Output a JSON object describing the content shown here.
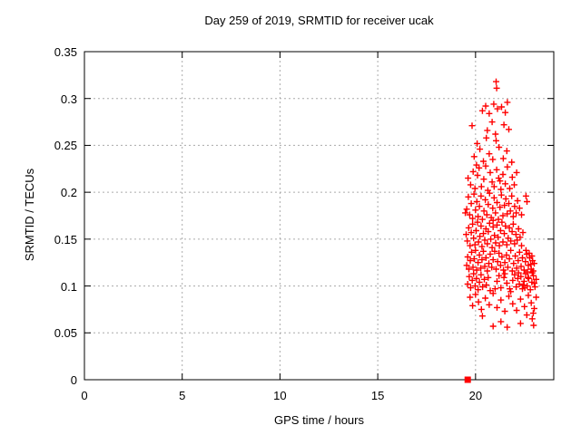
{
  "title": "Day 259 of 2019, SRMTID for receiver ucak",
  "colors": {
    "marker": "#ff0000",
    "axis": "#000000",
    "grid": "#aaaaaa",
    "background": "#ffffff"
  },
  "chart_data": {
    "type": "scatter",
    "title": "Day 259 of 2019, SRMTID for receiver ucak",
    "xlabel": "GPS time / hours",
    "ylabel": "SRMTID / TECUs",
    "xlim": [
      0,
      24
    ],
    "ylim": [
      0,
      0.35
    ],
    "xticks": {
      "values": [
        0,
        5,
        10,
        15,
        20
      ],
      "labels": [
        "0",
        "5",
        "10",
        "15",
        "20"
      ]
    },
    "yticks": {
      "values": [
        0,
        0.05,
        0.1,
        0.15,
        0.2,
        0.25,
        0.3,
        0.35
      ],
      "labels": [
        "0",
        "0.05",
        "0.1",
        "0.15",
        "0.2",
        "0.25",
        "0.3",
        "0.35"
      ]
    },
    "grid": true,
    "legend": "none",
    "series": [
      {
        "name": "srmtid-points",
        "marker": "plus",
        "color": "#ff0000",
        "points": [
          [
            21.05,
            0.318
          ],
          [
            21.08,
            0.311
          ],
          [
            20.35,
            0.287
          ],
          [
            20.52,
            0.292
          ],
          [
            20.7,
            0.284
          ],
          [
            20.93,
            0.294
          ],
          [
            21.12,
            0.289
          ],
          [
            21.33,
            0.291
          ],
          [
            21.52,
            0.285
          ],
          [
            21.63,
            0.296
          ],
          [
            19.82,
            0.271
          ],
          [
            20.6,
            0.266
          ],
          [
            20.85,
            0.275
          ],
          [
            21.02,
            0.262
          ],
          [
            21.45,
            0.272
          ],
          [
            21.7,
            0.267
          ],
          [
            19.93,
            0.238
          ],
          [
            20.08,
            0.252
          ],
          [
            20.22,
            0.246
          ],
          [
            20.4,
            0.233
          ],
          [
            20.55,
            0.258
          ],
          [
            20.7,
            0.241
          ],
          [
            20.88,
            0.235
          ],
          [
            21.05,
            0.255
          ],
          [
            21.2,
            0.248
          ],
          [
            21.42,
            0.236
          ],
          [
            21.6,
            0.244
          ],
          [
            21.85,
            0.232
          ],
          [
            19.62,
            0.215
          ],
          [
            19.75,
            0.208
          ],
          [
            19.88,
            0.222
          ],
          [
            19.97,
            0.204
          ],
          [
            20.1,
            0.218
          ],
          [
            20.18,
            0.226
          ],
          [
            20.3,
            0.206
          ],
          [
            20.42,
            0.214
          ],
          [
            20.52,
            0.228
          ],
          [
            20.63,
            0.202
          ],
          [
            20.75,
            0.221
          ],
          [
            20.85,
            0.211
          ],
          [
            20.95,
            0.206
          ],
          [
            21.08,
            0.224
          ],
          [
            21.18,
            0.215
          ],
          [
            21.3,
            0.203
          ],
          [
            21.4,
            0.219
          ],
          [
            21.52,
            0.209
          ],
          [
            21.63,
            0.227
          ],
          [
            21.75,
            0.204
          ],
          [
            21.88,
            0.216
          ],
          [
            21.98,
            0.208
          ],
          [
            22.1,
            0.221
          ],
          [
            20.05,
            0.229
          ],
          [
            21.25,
            0.212
          ],
          [
            19.55,
            0.182
          ],
          [
            19.63,
            0.195
          ],
          [
            19.7,
            0.176
          ],
          [
            19.78,
            0.188
          ],
          [
            19.85,
            0.172
          ],
          [
            19.92,
            0.198
          ],
          [
            20.0,
            0.181
          ],
          [
            20.07,
            0.19
          ],
          [
            20.13,
            0.174
          ],
          [
            20.2,
            0.185
          ],
          [
            20.28,
            0.196
          ],
          [
            20.35,
            0.171
          ],
          [
            20.43,
            0.18
          ],
          [
            20.5,
            0.192
          ],
          [
            20.58,
            0.176
          ],
          [
            20.65,
            0.187
          ],
          [
            20.72,
            0.199
          ],
          [
            20.8,
            0.173
          ],
          [
            20.88,
            0.183
          ],
          [
            20.95,
            0.194
          ],
          [
            21.02,
            0.178
          ],
          [
            21.1,
            0.189
          ],
          [
            21.17,
            0.171
          ],
          [
            21.25,
            0.184
          ],
          [
            21.32,
            0.197
          ],
          [
            21.4,
            0.175
          ],
          [
            21.48,
            0.186
          ],
          [
            21.55,
            0.193
          ],
          [
            21.62,
            0.177
          ],
          [
            21.7,
            0.188
          ],
          [
            21.78,
            0.18
          ],
          [
            21.85,
            0.196
          ],
          [
            21.93,
            0.174
          ],
          [
            22.0,
            0.185
          ],
          [
            22.08,
            0.178
          ],
          [
            22.15,
            0.191
          ],
          [
            22.25,
            0.183
          ],
          [
            22.35,
            0.176
          ],
          [
            22.58,
            0.196
          ],
          [
            22.63,
            0.19
          ],
          [
            19.48,
            0.178
          ],
          [
            20.9,
            0.17
          ],
          [
            19.52,
            0.155
          ],
          [
            19.58,
            0.148
          ],
          [
            19.65,
            0.162
          ],
          [
            19.72,
            0.143
          ],
          [
            19.78,
            0.157
          ],
          [
            19.85,
            0.166
          ],
          [
            19.9,
            0.151
          ],
          [
            19.97,
            0.144
          ],
          [
            20.03,
            0.159
          ],
          [
            20.1,
            0.168
          ],
          [
            20.15,
            0.147
          ],
          [
            20.22,
            0.153
          ],
          [
            20.28,
            0.164
          ],
          [
            20.33,
            0.142
          ],
          [
            20.4,
            0.156
          ],
          [
            20.47,
            0.149
          ],
          [
            20.53,
            0.161
          ],
          [
            20.6,
            0.145
          ],
          [
            20.65,
            0.158
          ],
          [
            20.72,
            0.167
          ],
          [
            20.78,
            0.15
          ],
          [
            20.85,
            0.141
          ],
          [
            20.9,
            0.163
          ],
          [
            20.97,
            0.154
          ],
          [
            21.03,
            0.146
          ],
          [
            21.1,
            0.165
          ],
          [
            21.15,
            0.152
          ],
          [
            21.22,
            0.143
          ],
          [
            21.28,
            0.159
          ],
          [
            21.35,
            0.168
          ],
          [
            21.4,
            0.147
          ],
          [
            21.47,
            0.156
          ],
          [
            21.53,
            0.164
          ],
          [
            21.6,
            0.144
          ],
          [
            21.67,
            0.151
          ],
          [
            21.73,
            0.162
          ],
          [
            21.8,
            0.148
          ],
          [
            21.87,
            0.158
          ],
          [
            21.93,
            0.166
          ],
          [
            22.0,
            0.145
          ],
          [
            22.07,
            0.155
          ],
          [
            22.13,
            0.149
          ],
          [
            22.2,
            0.161
          ],
          [
            22.28,
            0.152
          ],
          [
            22.35,
            0.143
          ],
          [
            22.42,
            0.157
          ],
          [
            19.55,
            0.122
          ],
          [
            19.6,
            0.131
          ],
          [
            19.66,
            0.118
          ],
          [
            19.73,
            0.127
          ],
          [
            19.8,
            0.136
          ],
          [
            19.87,
            0.12
          ],
          [
            19.93,
            0.129
          ],
          [
            20.0,
            0.138
          ],
          [
            20.06,
            0.117
          ],
          [
            20.13,
            0.125
          ],
          [
            20.2,
            0.133
          ],
          [
            20.27,
            0.119
          ],
          [
            20.33,
            0.128
          ],
          [
            20.4,
            0.137
          ],
          [
            20.47,
            0.121
          ],
          [
            20.53,
            0.13
          ],
          [
            20.6,
            0.116
          ],
          [
            20.68,
            0.124
          ],
          [
            20.75,
            0.134
          ],
          [
            20.83,
            0.12
          ],
          [
            20.9,
            0.128
          ],
          [
            20.98,
            0.137
          ],
          [
            21.05,
            0.118
          ],
          [
            21.13,
            0.126
          ],
          [
            21.2,
            0.135
          ],
          [
            21.28,
            0.122
          ],
          [
            21.35,
            0.131
          ],
          [
            21.43,
            0.117
          ],
          [
            21.5,
            0.125
          ],
          [
            21.58,
            0.133
          ],
          [
            21.65,
            0.12
          ],
          [
            21.73,
            0.129
          ],
          [
            21.8,
            0.138
          ],
          [
            21.88,
            0.116
          ],
          [
            21.95,
            0.124
          ],
          [
            22.03,
            0.132
          ],
          [
            22.1,
            0.119
          ],
          [
            22.18,
            0.127
          ],
          [
            22.25,
            0.136
          ],
          [
            22.33,
            0.121
          ],
          [
            22.4,
            0.13
          ],
          [
            22.48,
            0.117
          ],
          [
            22.55,
            0.126
          ],
          [
            22.62,
            0.134
          ],
          [
            22.7,
            0.122
          ],
          [
            22.77,
            0.13
          ],
          [
            22.85,
            0.118
          ],
          [
            22.92,
            0.127
          ],
          [
            23.0,
            0.124
          ],
          [
            22.58,
            0.138
          ],
          [
            22.66,
            0.115
          ],
          [
            22.74,
            0.135
          ],
          [
            22.82,
            0.123
          ],
          [
            22.88,
            0.132
          ],
          [
            22.95,
            0.116
          ],
          [
            19.6,
            0.102
          ],
          [
            19.68,
            0.11
          ],
          [
            19.75,
            0.098
          ],
          [
            19.83,
            0.106
          ],
          [
            19.9,
            0.113
          ],
          [
            19.98,
            0.1
          ],
          [
            20.05,
            0.108
          ],
          [
            20.13,
            0.096
          ],
          [
            20.2,
            0.104
          ],
          [
            20.28,
            0.112
          ],
          [
            20.36,
            0.099
          ],
          [
            20.45,
            0.107
          ],
          [
            20.55,
            0.101
          ],
          [
            21.0,
            0.097
          ],
          [
            21.1,
            0.105
          ],
          [
            21.2,
            0.111
          ],
          [
            21.3,
            0.098
          ],
          [
            21.45,
            0.109
          ],
          [
            21.6,
            0.103
          ],
          [
            21.75,
            0.097
          ],
          [
            21.9,
            0.106
          ],
          [
            22.0,
            0.112
          ],
          [
            22.08,
            0.099
          ],
          [
            22.16,
            0.108
          ],
          [
            22.24,
            0.102
          ],
          [
            22.32,
            0.11
          ],
          [
            22.4,
            0.097
          ],
          [
            22.48,
            0.105
          ],
          [
            22.56,
            0.113
          ],
          [
            22.64,
            0.1
          ],
          [
            22.72,
            0.108
          ],
          [
            22.8,
            0.096
          ],
          [
            22.88,
            0.104
          ],
          [
            22.96,
            0.111
          ],
          [
            23.04,
            0.099
          ],
          [
            23.1,
            0.107
          ],
          [
            22.2,
            0.114
          ],
          [
            22.44,
            0.101
          ],
          [
            22.68,
            0.109
          ],
          [
            22.9,
            0.114
          ],
          [
            23.0,
            0.103
          ],
          [
            21.5,
            0.113
          ],
          [
            20.65,
            0.109
          ],
          [
            20.75,
            0.095
          ],
          [
            22.52,
            0.098
          ],
          [
            19.72,
            0.088
          ],
          [
            19.85,
            0.079
          ],
          [
            20.0,
            0.091
          ],
          [
            20.15,
            0.083
          ],
          [
            20.3,
            0.075
          ],
          [
            20.5,
            0.087
          ],
          [
            20.7,
            0.08
          ],
          [
            20.9,
            0.092
          ],
          [
            21.1,
            0.077
          ],
          [
            21.3,
            0.085
          ],
          [
            21.5,
            0.073
          ],
          [
            21.7,
            0.089
          ],
          [
            21.9,
            0.081
          ],
          [
            22.1,
            0.074
          ],
          [
            22.3,
            0.086
          ],
          [
            22.5,
            0.078
          ],
          [
            22.7,
            0.09
          ],
          [
            22.85,
            0.082
          ],
          [
            23.0,
            0.076
          ],
          [
            23.1,
            0.088
          ],
          [
            22.95,
            0.071
          ],
          [
            21.8,
            0.094
          ],
          [
            20.35,
            0.068
          ],
          [
            20.9,
            0.057
          ],
          [
            21.3,
            0.062
          ],
          [
            21.62,
            0.056
          ],
          [
            22.3,
            0.06
          ],
          [
            22.62,
            0.069
          ],
          [
            22.9,
            0.065
          ],
          [
            22.97,
            0.058
          ]
        ]
      },
      {
        "name": "zero-line-marker",
        "marker": "filled-square",
        "color": "#ff0000",
        "points": [
          [
            19.6,
            0
          ]
        ]
      }
    ]
  }
}
